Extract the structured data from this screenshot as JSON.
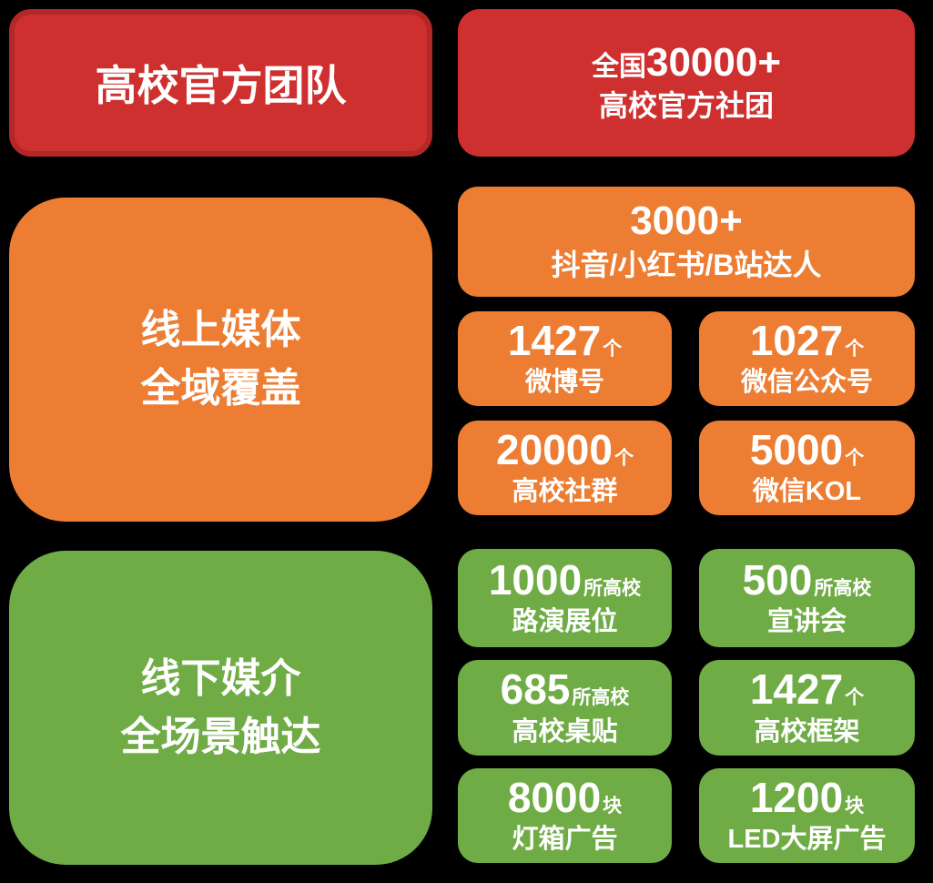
{
  "colors": {
    "red": "#ce2f2f",
    "red_border": "#b42727",
    "orange": "#ec7d33",
    "green": "#6fac46",
    "text": "#ffffff",
    "background": "#000000"
  },
  "team_section": {
    "title": "高校官方团队",
    "card": {
      "prefix": "全国",
      "number": "30000+",
      "label": "高校官方社团"
    }
  },
  "online_section": {
    "title_line1": "线上媒体",
    "title_line2": "全域覆盖",
    "wide_card": {
      "number": "3000+",
      "label": "抖音/小红书/B站达人"
    },
    "cards": [
      {
        "number": "1427",
        "unit": "个",
        "label": "微博号"
      },
      {
        "number": "1027",
        "unit": "个",
        "label": "微信公众号"
      },
      {
        "number": "20000",
        "unit": "个",
        "label": "高校社群"
      },
      {
        "number": "5000",
        "unit": "个",
        "label": "微信KOL"
      }
    ]
  },
  "offline_section": {
    "title_line1": "线下媒介",
    "title_line2": "全场景触达",
    "cards": [
      {
        "number": "1000",
        "unit": "所高校",
        "label": "路演展位"
      },
      {
        "number": "500",
        "unit": "所高校",
        "label": "宣讲会"
      },
      {
        "number": "685",
        "unit": "所高校",
        "label": "高校桌贴"
      },
      {
        "number": "1427",
        "unit": "个",
        "label": "高校框架"
      },
      {
        "number": "8000",
        "unit": "块",
        "label": "灯箱广告"
      },
      {
        "number": "1200",
        "unit": "块",
        "label": "LED大屏广告"
      }
    ]
  }
}
